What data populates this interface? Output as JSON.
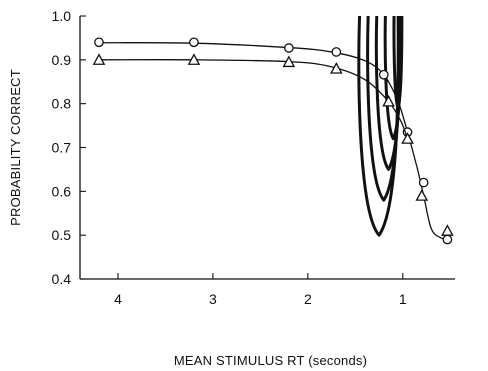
{
  "chart_data": {
    "type": "line",
    "title": "",
    "xlabel": "MEAN STIMULUS RT (seconds)",
    "ylabel": "PROBABILITY CORRECT",
    "xlim": [
      4.4,
      0.45
    ],
    "ylim": [
      0.4,
      1.0
    ],
    "x_reversed": true,
    "x_ticks": [
      4,
      3,
      2,
      1
    ],
    "y_ticks": [
      0.4,
      0.5,
      0.6,
      0.7,
      0.8,
      0.9,
      1.0
    ],
    "x_tick_labels": [
      "4",
      "3",
      "2",
      "1"
    ],
    "y_tick_labels": [
      "0.4",
      "0.5",
      "0.6",
      "0.7",
      "0.8",
      "0.9",
      "1.0"
    ],
    "grid": false,
    "legend": "none",
    "series": [
      {
        "marker": "circle",
        "points": [
          {
            "x": 4.2,
            "y": 0.94
          },
          {
            "x": 3.2,
            "y": 0.94
          },
          {
            "x": 2.2,
            "y": 0.927
          },
          {
            "x": 1.7,
            "y": 0.918
          },
          {
            "x": 1.2,
            "y": 0.866
          },
          {
            "x": 0.95,
            "y": 0.735
          },
          {
            "x": 0.78,
            "y": 0.62
          },
          {
            "x": 0.53,
            "y": 0.49
          }
        ],
        "curve": [
          {
            "x": 4.2,
            "y": 0.939
          },
          {
            "x": 3.2,
            "y": 0.938
          },
          {
            "x": 2.2,
            "y": 0.928
          },
          {
            "x": 1.75,
            "y": 0.918
          },
          {
            "x": 1.4,
            "y": 0.898
          },
          {
            "x": 1.2,
            "y": 0.866
          },
          {
            "x": 1.05,
            "y": 0.805
          },
          {
            "x": 0.95,
            "y": 0.735
          },
          {
            "x": 0.85,
            "y": 0.655
          },
          {
            "x": 0.78,
            "y": 0.59
          },
          {
            "x": 0.7,
            "y": 0.515
          },
          {
            "x": 0.6,
            "y": 0.494
          },
          {
            "x": 0.53,
            "y": 0.493
          }
        ]
      },
      {
        "marker": "triangle",
        "points": [
          {
            "x": 4.2,
            "y": 0.9
          },
          {
            "x": 3.2,
            "y": 0.9
          },
          {
            "x": 2.2,
            "y": 0.895
          },
          {
            "x": 1.7,
            "y": 0.88
          },
          {
            "x": 1.15,
            "y": 0.805
          },
          {
            "x": 0.95,
            "y": 0.72
          },
          {
            "x": 0.8,
            "y": 0.59
          },
          {
            "x": 0.53,
            "y": 0.51
          }
        ],
        "curve": [
          {
            "x": 4.2,
            "y": 0.9
          },
          {
            "x": 3.2,
            "y": 0.9
          },
          {
            "x": 2.2,
            "y": 0.896
          },
          {
            "x": 1.75,
            "y": 0.884
          },
          {
            "x": 1.4,
            "y": 0.855
          },
          {
            "x": 1.15,
            "y": 0.805
          },
          {
            "x": 1.02,
            "y": 0.76
          },
          {
            "x": 0.95,
            "y": 0.72
          }
        ]
      }
    ],
    "loops": [
      {
        "bottom": 0.5,
        "outer_left_x": 1.45,
        "inner_right_x": 1.05
      },
      {
        "bottom": 0.58,
        "outer_left_x": 1.36,
        "inner_right_x": 1.04
      },
      {
        "bottom": 0.65,
        "outer_left_x": 1.27,
        "inner_right_x": 1.03
      },
      {
        "bottom": 0.72,
        "outer_left_x": 1.18,
        "inner_right_x": 1.02
      },
      {
        "bottom": 0.79,
        "outer_left_x": 1.09,
        "inner_right_x": 1.01
      }
    ]
  }
}
